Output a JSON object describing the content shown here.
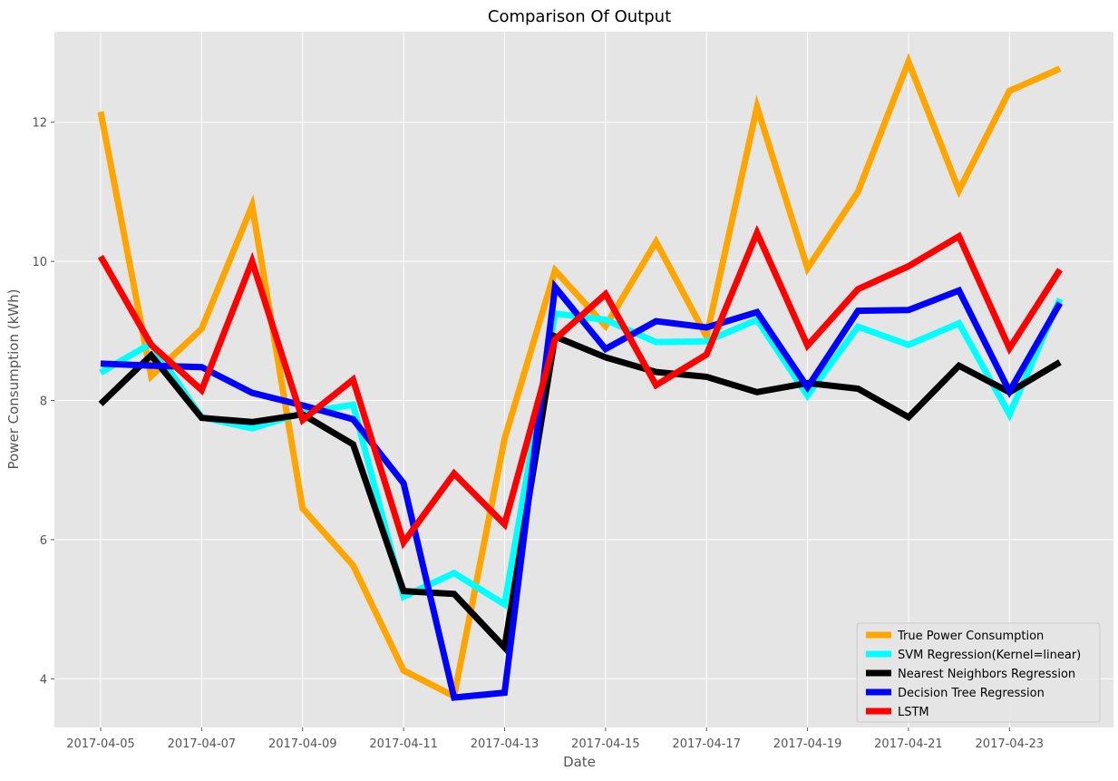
{
  "chart_data": {
    "type": "line",
    "title": "Comparison Of Output",
    "xlabel": "Date",
    "ylabel": "Power Consumption (kWh)",
    "x": [
      "2017-04-05",
      "2017-04-06",
      "2017-04-07",
      "2017-04-08",
      "2017-04-09",
      "2017-04-10",
      "2017-04-11",
      "2017-04-12",
      "2017-04-13",
      "2017-04-14",
      "2017-04-15",
      "2017-04-16",
      "2017-04-17",
      "2017-04-18",
      "2017-04-19",
      "2017-04-20",
      "2017-04-21",
      "2017-04-22",
      "2017-04-23",
      "2017-04-24"
    ],
    "x_tick_labels": [
      "2017-04-05",
      "2017-04-07",
      "2017-04-09",
      "2017-04-11",
      "2017-04-13",
      "2017-04-15",
      "2017-04-17",
      "2017-04-19",
      "2017-04-21",
      "2017-04-23"
    ],
    "y_ticks": [
      4,
      6,
      8,
      10,
      12
    ],
    "ylim": [
      3.3,
      13.3
    ],
    "grid": true,
    "legend_position": "bottom-right",
    "background": "#e5e5e5",
    "series": [
      {
        "name": "True Power Consumption",
        "color": "#ffa500",
        "values": [
          12.15,
          8.35,
          9.03,
          10.8,
          6.45,
          5.63,
          4.12,
          3.75,
          7.45,
          9.87,
          9.07,
          10.28,
          8.92,
          12.22,
          9.9,
          11.0,
          12.87,
          11.02,
          12.45,
          12.77
        ]
      },
      {
        "name": "SVM Regression(Kernel=linear)",
        "color": "#00ffff",
        "values": [
          8.4,
          8.82,
          7.76,
          7.6,
          7.82,
          7.94,
          5.18,
          5.52,
          5.07,
          9.25,
          9.16,
          8.84,
          8.85,
          9.16,
          8.07,
          9.06,
          8.8,
          9.11,
          7.8,
          9.46
        ]
      },
      {
        "name": "Nearest Neighbors Regression",
        "color": "#000000",
        "values": [
          7.95,
          8.65,
          7.75,
          7.69,
          7.8,
          7.37,
          5.26,
          5.22,
          4.45,
          8.92,
          8.62,
          8.41,
          8.34,
          8.12,
          8.25,
          8.17,
          7.76,
          8.5,
          8.12,
          8.55
        ]
      },
      {
        "name": "Decision Tree Regression",
        "color": "#0000ff",
        "values": [
          8.53,
          8.5,
          8.48,
          8.11,
          7.93,
          7.73,
          6.81,
          3.73,
          3.8,
          9.63,
          8.74,
          9.14,
          9.05,
          9.27,
          8.19,
          9.29,
          9.3,
          9.58,
          8.13,
          9.4
        ]
      },
      {
        "name": "LSTM",
        "color": "#ff0000",
        "values": [
          10.07,
          8.8,
          8.15,
          10.0,
          7.72,
          8.3,
          5.96,
          6.95,
          6.22,
          8.88,
          9.53,
          8.22,
          8.66,
          10.41,
          8.79,
          9.6,
          9.93,
          10.36,
          8.75,
          9.88
        ]
      }
    ]
  }
}
